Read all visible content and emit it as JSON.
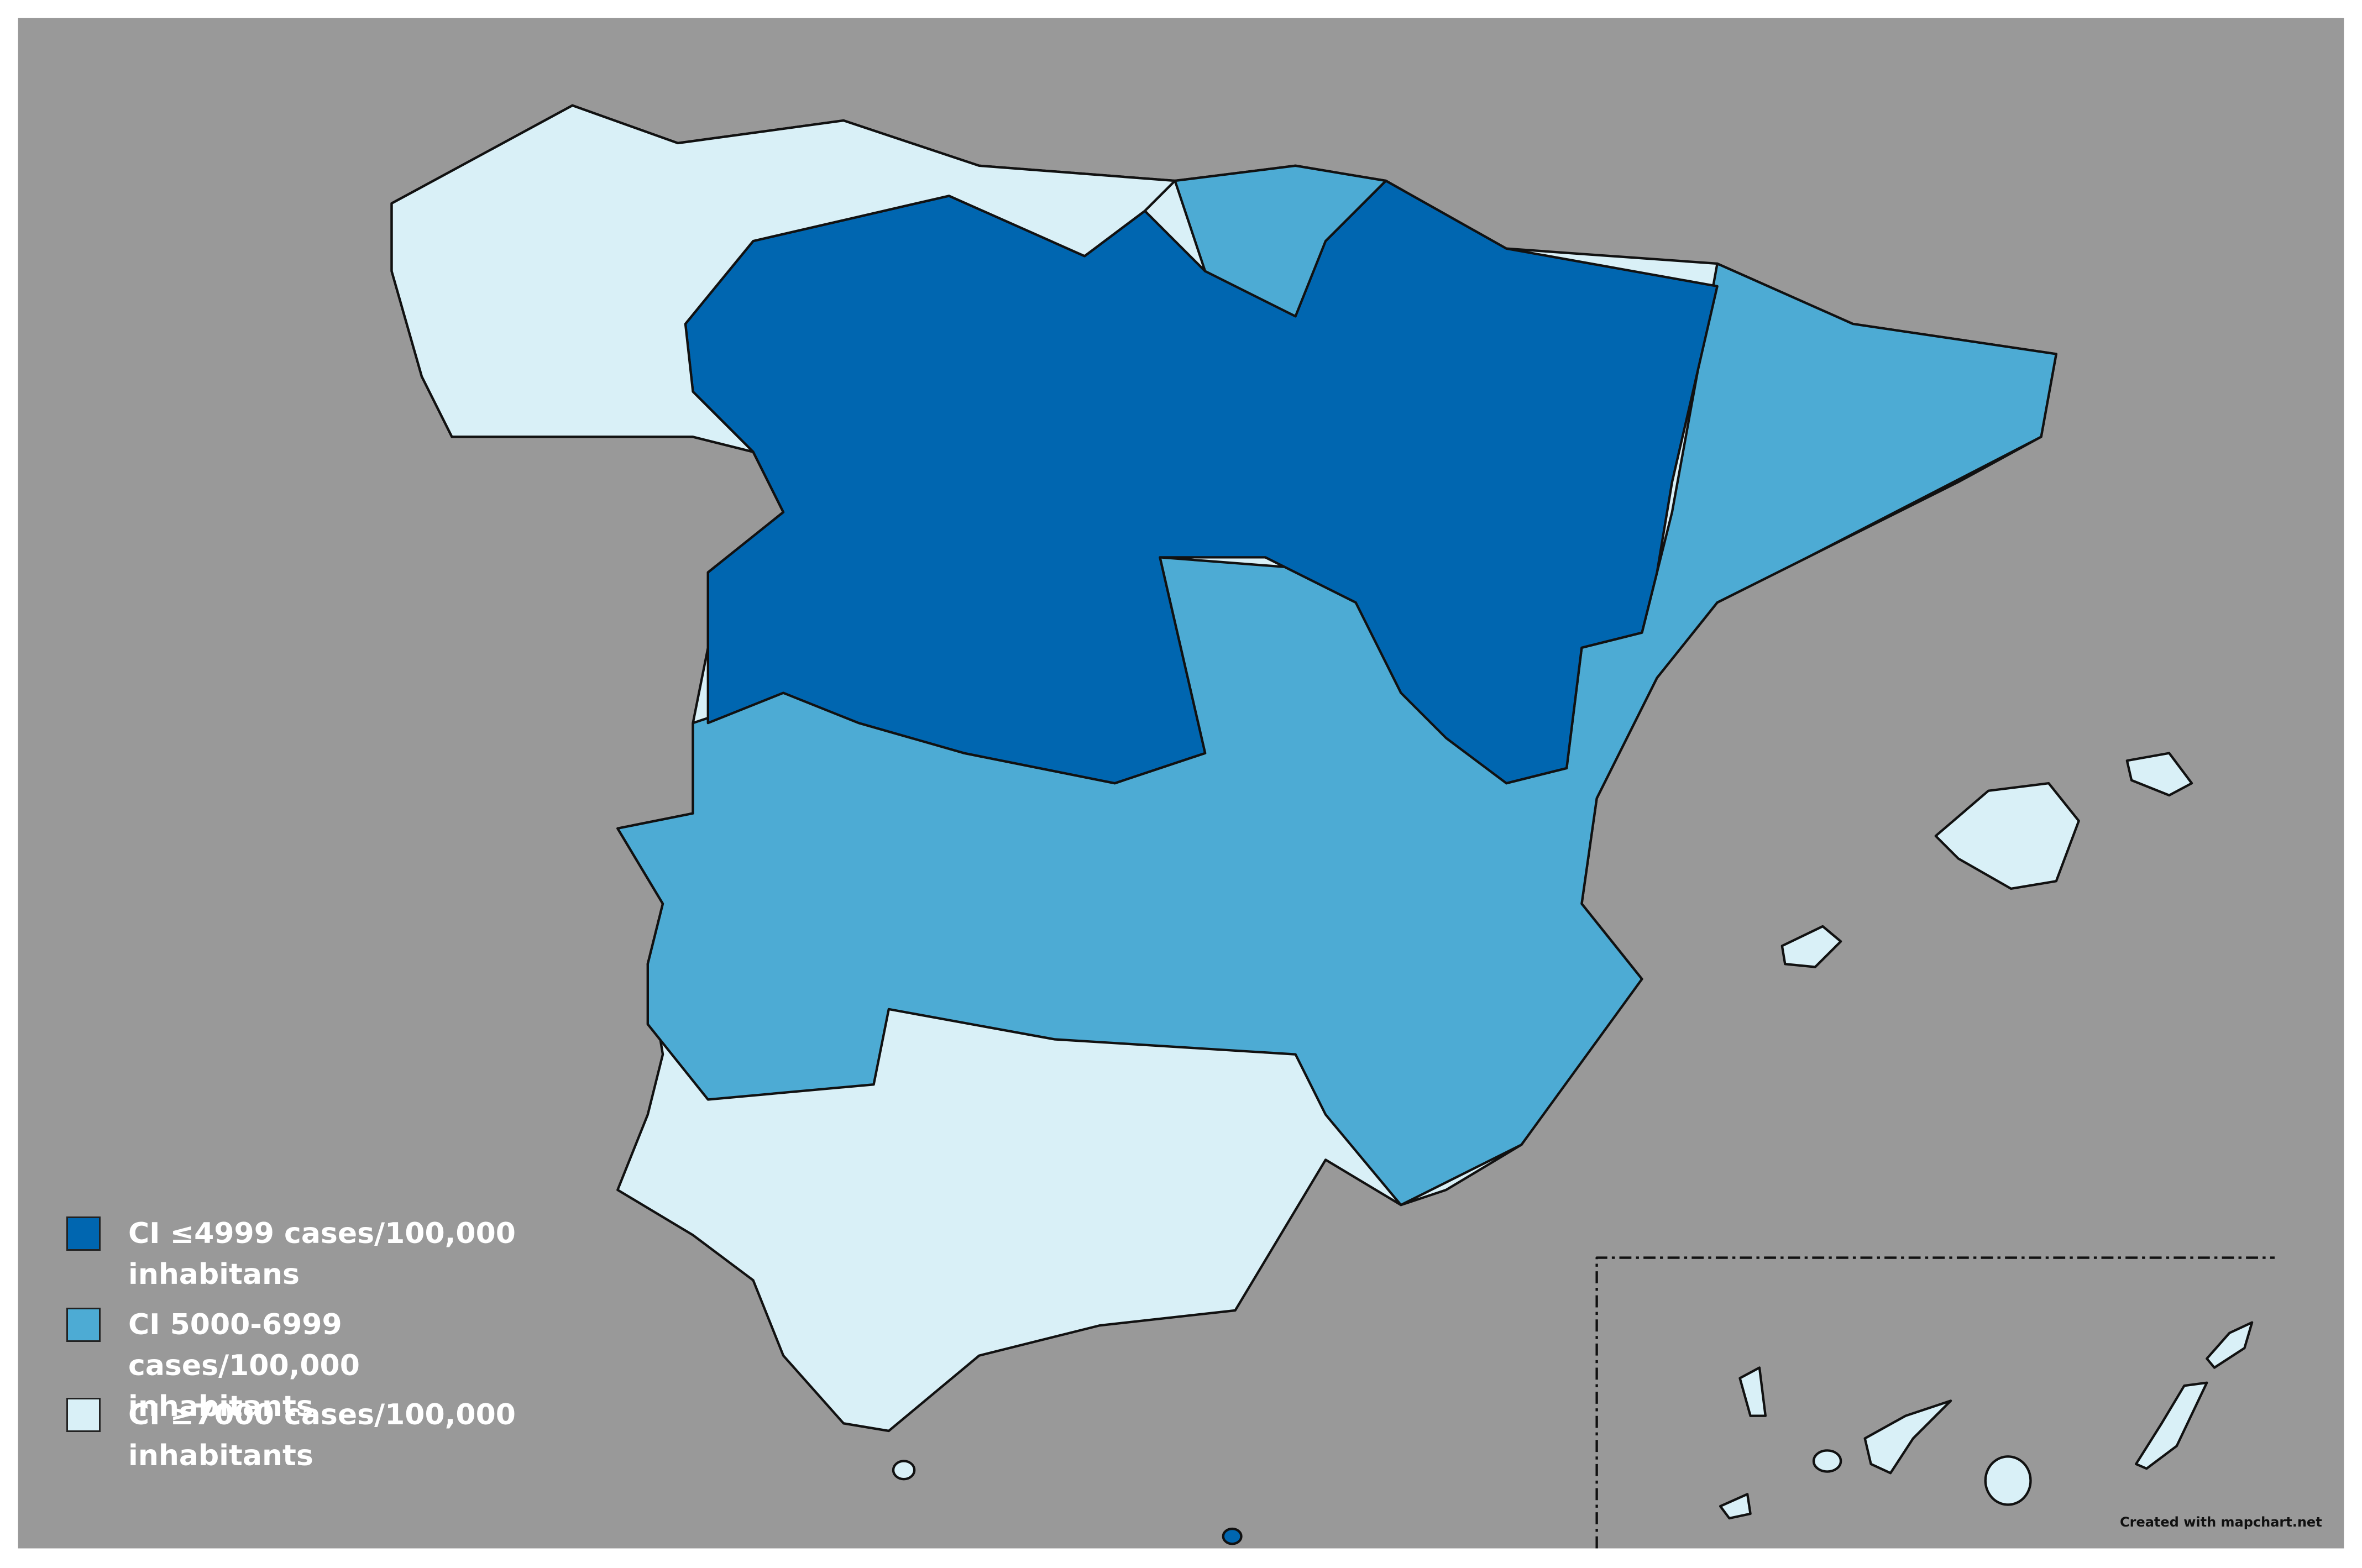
{
  "legend": [
    {
      "label": "CI ≤4999 cases/100,000 inhabitans",
      "color": "#0066b0"
    },
    {
      "label": "CI 5000-6999 cases/100,000 inhabitants",
      "color": "#4dabd4"
    },
    {
      "label": "CI ≥7000 cases/100,000 inhabitants",
      "color": "#d9f0f7"
    }
  ],
  "credit": "Created with mapchart.net"
}
